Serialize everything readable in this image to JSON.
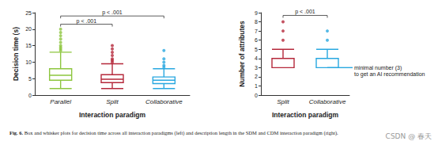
{
  "chart_data": [
    {
      "type": "boxplot",
      "x_label": "Interaction paradigm",
      "y_label": "Decision time (s)",
      "categories": [
        "Parallel",
        "Split",
        "Collaborative"
      ],
      "colors": [
        "#8dc63f",
        "#b5283b",
        "#29a8e0"
      ],
      "boxes": [
        [
          2,
          4.5,
          6,
          8,
          13
        ],
        [
          2,
          3.8,
          4.8,
          6.2,
          9.5
        ],
        [
          2,
          3.5,
          4.5,
          5.5,
          8
        ]
      ],
      "outliers": [
        [
          13.5,
          14,
          14.5,
          15,
          16,
          17,
          18,
          19,
          20
        ],
        [
          10,
          10.5,
          11,
          12,
          13,
          14,
          15
        ],
        [
          8.5,
          9,
          10,
          11,
          13.5
        ]
      ],
      "comparisons": [
        {
          "from": "Parallel",
          "to": "Collaborative",
          "y": 24,
          "text": "p < .001"
        },
        {
          "from": "Parallel",
          "to": "Split",
          "y": 21.5,
          "text": "p < .001"
        }
      ],
      "ylim": [
        0,
        25
      ],
      "yticks": [
        0,
        5,
        10,
        15,
        20,
        25
      ],
      "grid": false
    },
    {
      "type": "boxplot",
      "x_label": "Interaction paradigm",
      "y_label": "Number of attributes",
      "categories": [
        "Split",
        "Collaborative"
      ],
      "colors": [
        "#b5283b",
        "#29a8e0"
      ],
      "boxes": [
        [
          3,
          3,
          3,
          4,
          5
        ],
        [
          3,
          3,
          3,
          4,
          5
        ]
      ],
      "outliers": [
        [
          6,
          7,
          8
        ],
        [
          6,
          7
        ]
      ],
      "comparisons": [
        {
          "from": "Split",
          "to": "Collaborative",
          "y": 8.7,
          "text": "p < .001"
        }
      ],
      "annotation": {
        "y": 3,
        "text": [
          "minimal number (3)",
          "to get an AI recommendation"
        ]
      },
      "ylim": [
        0,
        9
      ],
      "yticks": [
        0,
        1,
        2,
        3,
        4,
        5,
        6,
        7,
        8,
        9
      ],
      "grid": false
    }
  ],
  "caption_label": "Fig. 6.",
  "caption": "Box and whisker plots for decision time across all interaction paradigms (left) and description length in the SDM and CDM interaction paradigm (right).",
  "watermark": "CSDN @ 春天"
}
